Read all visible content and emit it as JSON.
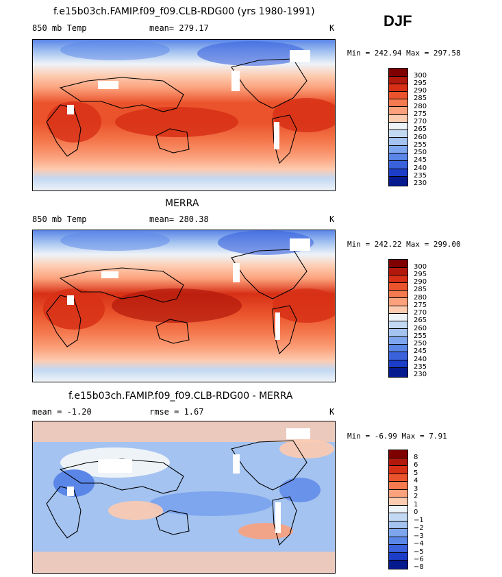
{
  "season": "DJF",
  "panels": [
    {
      "title": "f.e15b03ch.FAMIP.f09_f09.CLB-RDG00 (yrs 1980-1991)",
      "left_text": "850 mb Temp",
      "mid_text": "mean=  279.17",
      "units": "K",
      "minmax": "Min = 242.94  Max = 297.58",
      "levels": [
        "300",
        "295",
        "290",
        "285",
        "280",
        "275",
        "270",
        "265",
        "260",
        "255",
        "250",
        "245",
        "240",
        "235",
        "230"
      ]
    },
    {
      "title": "MERRA",
      "left_text": "850 mb Temp",
      "mid_text": "mean=  280.38",
      "units": "K",
      "minmax": "Min = 242.22  Max = 299.00",
      "levels": [
        "300",
        "295",
        "290",
        "285",
        "280",
        "275",
        "270",
        "265",
        "260",
        "255",
        "250",
        "245",
        "240",
        "235",
        "230"
      ]
    },
    {
      "title": "f.e15b03ch.FAMIP.f09_f09.CLB-RDG00 - MERRA",
      "left_text": "mean =   -1.20",
      "mid_text": "rmse =    1.67",
      "units": "K",
      "minmax": "Min =  -6.99  Max =    7.91",
      "levels": [
        "8",
        "6",
        "5",
        "4",
        "3",
        "2",
        "1",
        "0",
        "−1",
        "−2",
        "−3",
        "−4",
        "−5",
        "−6",
        "−8"
      ]
    }
  ],
  "colors": {
    "abs_scale": [
      "#7f0000",
      "#b2180c",
      "#d73016",
      "#ea532b",
      "#f57a4f",
      "#fba17c",
      "#fdcbb0",
      "#eef3f8",
      "#c3d8f2",
      "#a4c3f0",
      "#7ea6ee",
      "#5a86e8",
      "#3a62dd",
      "#1c3dc8",
      "#061a8f"
    ],
    "diff_scale": [
      "#7f0000",
      "#b2180c",
      "#d73016",
      "#ea532b",
      "#f57a4f",
      "#fba17c",
      "#fdcbb0",
      "#eef3f8",
      "#c3d8f2",
      "#a4c3f0",
      "#7ea6ee",
      "#5a86e8",
      "#3a62dd",
      "#1c3dc8",
      "#061a8f"
    ]
  }
}
